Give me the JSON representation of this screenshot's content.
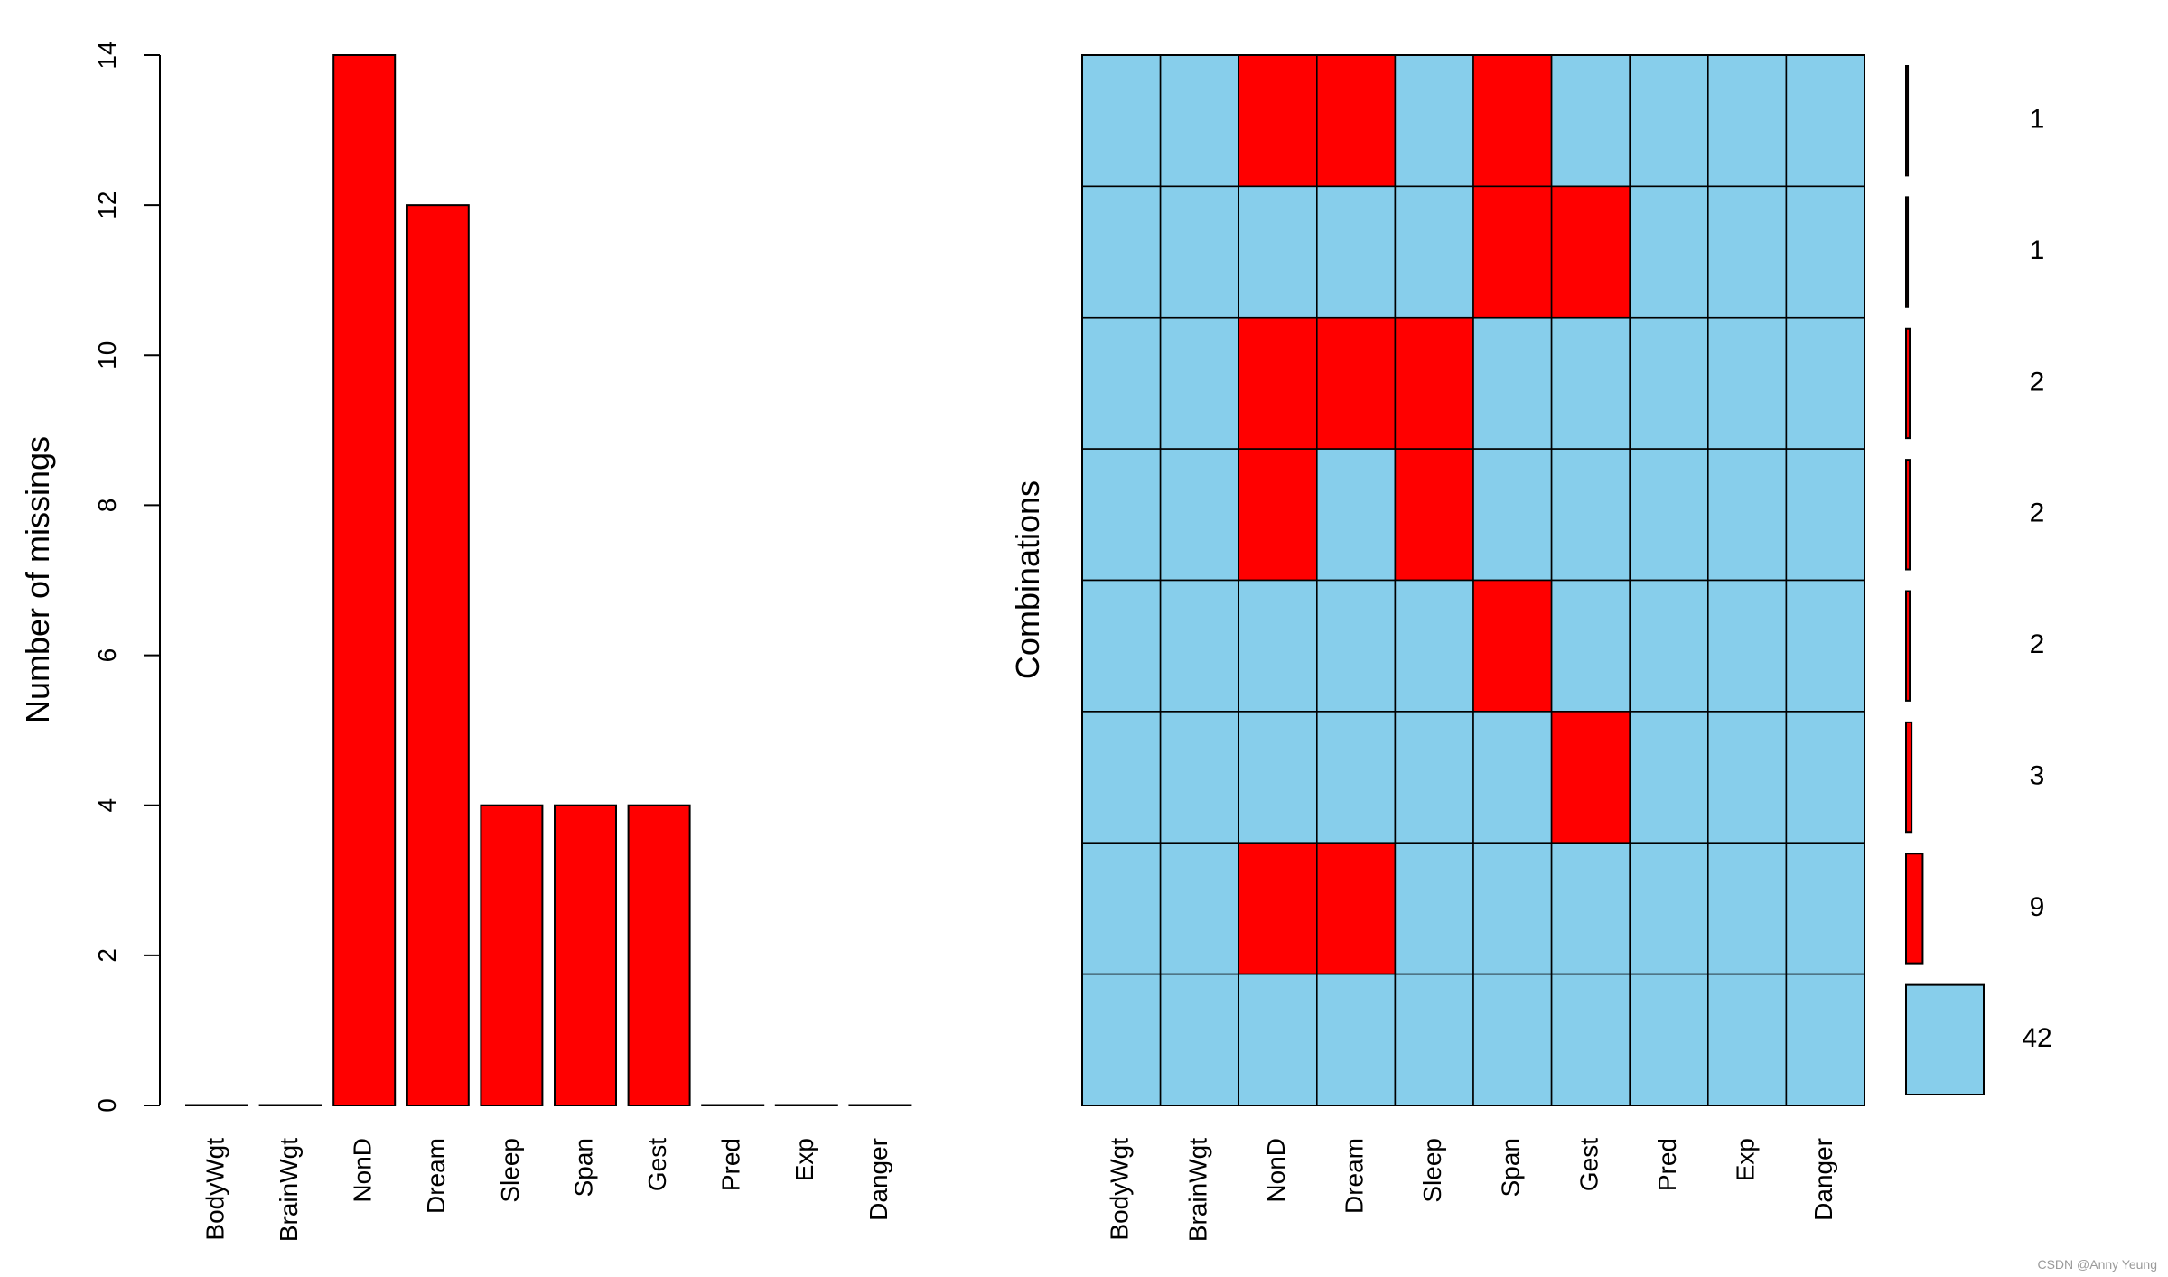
{
  "chart_data": [
    {
      "type": "bar",
      "categories": [
        "BodyWgt",
        "BrainWgt",
        "NonD",
        "Dream",
        "Sleep",
        "Span",
        "Gest",
        "Pred",
        "Exp",
        "Danger"
      ],
      "values": [
        0,
        0,
        14,
        12,
        4,
        4,
        4,
        0,
        0,
        0
      ],
      "ylabel": "Number of missings",
      "ylim": [
        0,
        14
      ],
      "yticks": [
        "0",
        "2",
        "4",
        "6",
        "8",
        "10",
        "12",
        "14"
      ],
      "bar_color": "#FF0000",
      "grid": false
    },
    {
      "type": "heatmap",
      "columns": [
        "BodyWgt",
        "BrainWgt",
        "NonD",
        "Dream",
        "Sleep",
        "Span",
        "Gest",
        "Pred",
        "Exp",
        "Danger"
      ],
      "ylabel": "Combinations",
      "rows": [
        {
          "missing": [
            0,
            0,
            1,
            1,
            0,
            1,
            0,
            0,
            0,
            0
          ],
          "count": 1
        },
        {
          "missing": [
            0,
            0,
            0,
            0,
            0,
            1,
            1,
            0,
            0,
            0
          ],
          "count": 1
        },
        {
          "missing": [
            0,
            0,
            1,
            1,
            1,
            0,
            0,
            0,
            0,
            0
          ],
          "count": 2
        },
        {
          "missing": [
            0,
            0,
            1,
            0,
            1,
            0,
            0,
            0,
            0,
            0
          ],
          "count": 2
        },
        {
          "missing": [
            0,
            0,
            0,
            0,
            0,
            1,
            0,
            0,
            0,
            0
          ],
          "count": 2
        },
        {
          "missing": [
            0,
            0,
            0,
            0,
            0,
            0,
            1,
            0,
            0,
            0
          ],
          "count": 3
        },
        {
          "missing": [
            0,
            0,
            1,
            1,
            0,
            0,
            0,
            0,
            0,
            0
          ],
          "count": 9
        },
        {
          "missing": [
            0,
            0,
            0,
            0,
            0,
            0,
            0,
            0,
            0,
            0
          ],
          "count": 42
        }
      ],
      "count_labels": [
        "1",
        "1",
        "2",
        "2",
        "2",
        "3",
        "9",
        "42"
      ],
      "missing_color": "#FF0000",
      "observed_color": "#87CEEB"
    }
  ],
  "watermark": "CSDN @Anny Yeung"
}
